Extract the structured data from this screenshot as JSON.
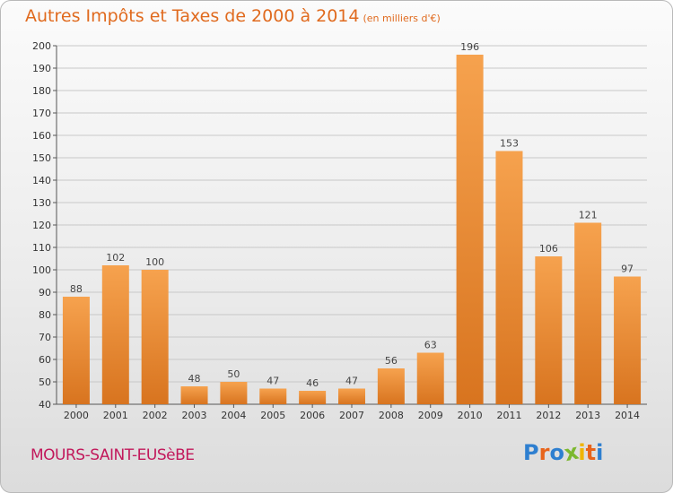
{
  "header": {
    "title": "Autres Impôts et Taxes de 2000 à 2014",
    "subtitle": "(en milliers d'€)"
  },
  "footer": {
    "town": "MOURS-SAINT-EUSèBE",
    "brand_letters": [
      "P",
      "r",
      "o",
      "x",
      "i",
      "t",
      "i"
    ],
    "brand_colors": [
      "#2e7fd0",
      "#e8641b",
      "#2e7fd0",
      "#7cb82f",
      "#f0b400",
      "#e8641b",
      "#2e7fd0"
    ]
  },
  "colors": {
    "bar_light": "#f6a24e",
    "bar_dark": "#d8741f",
    "title": "#e06a1e",
    "town": "#c2185b",
    "grid": "#c8c8c8"
  },
  "chart_data": {
    "type": "bar",
    "categories": [
      "2000",
      "2001",
      "2002",
      "2003",
      "2004",
      "2005",
      "2006",
      "2007",
      "2008",
      "2009",
      "2010",
      "2011",
      "2012",
      "2013",
      "2014"
    ],
    "values": [
      88,
      102,
      100,
      48,
      50,
      47,
      46,
      47,
      56,
      63,
      196,
      153,
      106,
      121,
      97
    ],
    "title": "Autres Impôts et Taxes de 2000 à 2014",
    "xlabel": "",
    "ylabel": "",
    "ylim": [
      40,
      200
    ],
    "yticks": [
      40,
      50,
      60,
      70,
      80,
      90,
      100,
      110,
      120,
      130,
      140,
      150,
      160,
      170,
      180,
      190,
      200
    ],
    "grid": true
  }
}
